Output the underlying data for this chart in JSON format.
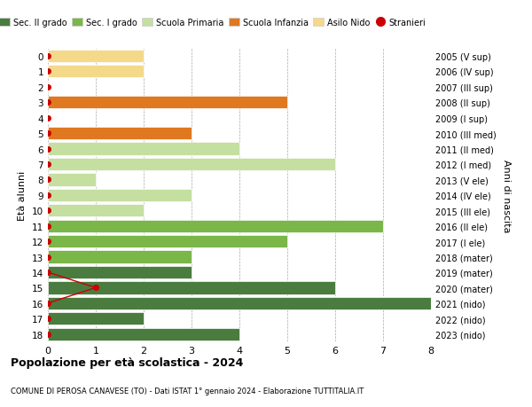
{
  "ages": [
    18,
    17,
    16,
    15,
    14,
    13,
    12,
    11,
    10,
    9,
    8,
    7,
    6,
    5,
    4,
    3,
    2,
    1,
    0
  ],
  "right_labels": [
    "2005 (V sup)",
    "2006 (IV sup)",
    "2007 (III sup)",
    "2008 (II sup)",
    "2009 (I sup)",
    "2010 (III med)",
    "2011 (II med)",
    "2012 (I med)",
    "2013 (V ele)",
    "2014 (IV ele)",
    "2015 (III ele)",
    "2016 (II ele)",
    "2017 (I ele)",
    "2018 (mater)",
    "2019 (mater)",
    "2020 (mater)",
    "2021 (nido)",
    "2022 (nido)",
    "2023 (nido)"
  ],
  "bars": [
    {
      "age": 18,
      "value": 4,
      "color": "#4a7c3f"
    },
    {
      "age": 17,
      "value": 2,
      "color": "#4a7c3f"
    },
    {
      "age": 16,
      "value": 8,
      "color": "#4a7c3f"
    },
    {
      "age": 15,
      "value": 6,
      "color": "#4a7c3f"
    },
    {
      "age": 14,
      "value": 3,
      "color": "#4a7c3f"
    },
    {
      "age": 13,
      "value": 3,
      "color": "#7ab648"
    },
    {
      "age": 12,
      "value": 5,
      "color": "#7ab648"
    },
    {
      "age": 11,
      "value": 7,
      "color": "#7ab648"
    },
    {
      "age": 10,
      "value": 2,
      "color": "#c5dfa0"
    },
    {
      "age": 9,
      "value": 3,
      "color": "#c5dfa0"
    },
    {
      "age": 8,
      "value": 1,
      "color": "#c5dfa0"
    },
    {
      "age": 7,
      "value": 6,
      "color": "#c5dfa0"
    },
    {
      "age": 6,
      "value": 4,
      "color": "#c5dfa0"
    },
    {
      "age": 5,
      "value": 3,
      "color": "#e07820"
    },
    {
      "age": 4,
      "value": 0,
      "color": "#e07820"
    },
    {
      "age": 3,
      "value": 5,
      "color": "#e07820"
    },
    {
      "age": 2,
      "value": 0,
      "color": "#f5d98a"
    },
    {
      "age": 1,
      "value": 2,
      "color": "#f5d98a"
    },
    {
      "age": 0,
      "value": 2,
      "color": "#f5d98a"
    }
  ],
  "stranieri_line_ages": [
    16,
    15,
    14
  ],
  "stranieri_line_values": [
    0,
    1,
    0
  ],
  "stranieri_dot_ages": [
    18,
    17,
    16,
    15,
    14,
    13,
    12,
    11,
    10,
    9,
    8,
    7,
    6,
    5,
    4,
    3,
    2,
    1,
    0
  ],
  "stranieri_dot_values": [
    0,
    0,
    0,
    1,
    0,
    0,
    0,
    0,
    0,
    0,
    0,
    0,
    0,
    0,
    0,
    0,
    0,
    0,
    0
  ],
  "stranieri_color": "#cc0000",
  "legend_items": [
    {
      "label": "Sec. II grado",
      "color": "#4a7c3f",
      "type": "patch"
    },
    {
      "label": "Sec. I grado",
      "color": "#7ab648",
      "type": "patch"
    },
    {
      "label": "Scuola Primaria",
      "color": "#c5dfa0",
      "type": "patch"
    },
    {
      "label": "Scuola Infanzia",
      "color": "#e07820",
      "type": "patch"
    },
    {
      "label": "Asilo Nido",
      "color": "#f5d98a",
      "type": "patch"
    },
    {
      "label": "Stranieri",
      "color": "#cc0000",
      "type": "circle"
    }
  ],
  "ylabel_left": "Età alunni",
  "ylabel_right": "Anni di nascita",
  "xlim": [
    0,
    8
  ],
  "xticks": [
    0,
    1,
    2,
    3,
    4,
    5,
    6,
    7,
    8
  ],
  "title": "Popolazione per età scolastica - 2024",
  "subtitle": "COMUNE DI PEROSA CANAVESE (TO) - Dati ISTAT 1° gennaio 2024 - Elaborazione TUTTITALIA.IT",
  "bg_color": "#ffffff",
  "bar_height": 0.82
}
